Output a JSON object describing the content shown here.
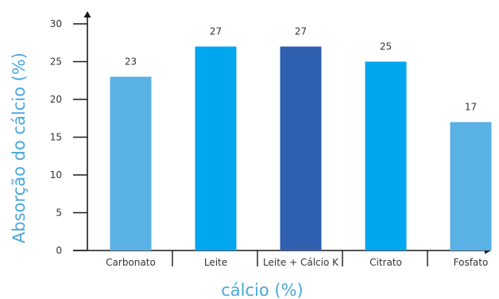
{
  "chart_data": {
    "type": "bar",
    "categories": [
      "Carbonato",
      "Leite",
      "Leite + Cálcio K",
      "Citrato",
      "Fosfato"
    ],
    "values": [
      23,
      27,
      27,
      25,
      17
    ],
    "data_labels": [
      "23",
      "27",
      "27",
      "25",
      "17"
    ],
    "bar_colors": [
      "#5ab1e6",
      "#00a6ee",
      "#2f60af",
      "#00a6ee",
      "#5ab1e6"
    ],
    "title": "",
    "xlabel": "cálcio (%)",
    "ylabel": "Absorção do cálcio (%)",
    "ylim": [
      0,
      30
    ],
    "yticks": [
      "0",
      "5",
      "10",
      "15",
      "20",
      "25",
      "30"
    ],
    "grid": false,
    "legend": "none"
  },
  "colors": {
    "axis": "#1a1a1a",
    "axis_title": "#4aa8dd",
    "text": "#333333"
  }
}
